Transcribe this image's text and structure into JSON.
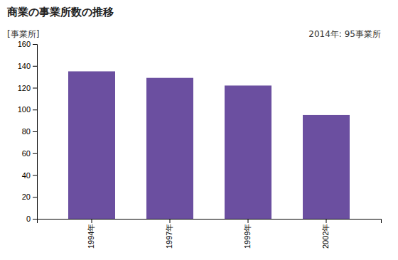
{
  "chart_data": {
    "type": "bar",
    "title": "商業の事業所数の推移",
    "ylabel": "[事業所]",
    "annotation": "2014年: 95事業所",
    "categories": [
      "1994年",
      "1997年",
      "1999年",
      "2002年"
    ],
    "values": [
      135,
      129,
      122,
      95
    ],
    "color": "#6B4FA0",
    "ylim": [
      0,
      160
    ],
    "yticks": [
      0,
      20,
      40,
      60,
      80,
      100,
      120,
      140,
      160
    ],
    "grid": false
  }
}
